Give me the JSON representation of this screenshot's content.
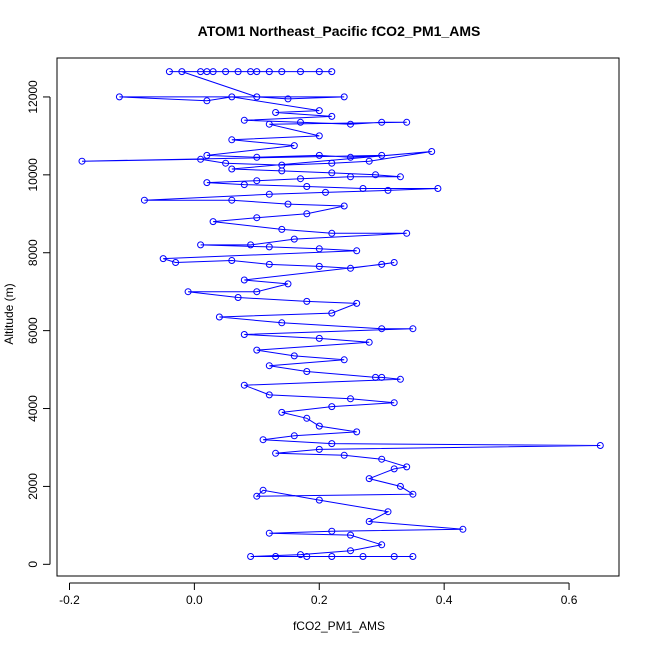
{
  "chart_data": {
    "type": "line",
    "title": "ATOM1 Northeast_Pacific fCO2_PM1_AMS",
    "xlabel": "fCO2_PM1_AMS",
    "ylabel": "Altitude (m)",
    "xlim": [
      -0.22,
      0.68
    ],
    "ylim": [
      -300,
      13000
    ],
    "xticks": [
      -0.2,
      0.0,
      0.2,
      0.4,
      0.6
    ],
    "xtick_labels": [
      "-0.2",
      "0.0",
      "0.2",
      "0.4",
      "0.6"
    ],
    "yticks": [
      0,
      2000,
      4000,
      6000,
      8000,
      10000,
      12000
    ],
    "ytick_labels": [
      "0",
      "2000",
      "4000",
      "6000",
      "8000",
      "10000",
      "12000"
    ],
    "grid": false,
    "marker": "open-circle",
    "color": "#0000ff",
    "series": [
      {
        "values_xy": [
          [
            -0.04,
            12650
          ],
          [
            0.01,
            12650
          ],
          [
            0.03,
            12650
          ],
          [
            0.07,
            12650
          ],
          [
            0.1,
            12650
          ],
          [
            0.14,
            12650
          ],
          [
            0.17,
            12650
          ],
          [
            0.2,
            12650
          ],
          [
            0.22,
            12650
          ],
          [
            0.12,
            12650
          ],
          [
            0.09,
            12650
          ],
          [
            0.05,
            12650
          ],
          [
            0.02,
            12650
          ],
          [
            -0.02,
            12650
          ],
          [
            0.1,
            12000
          ],
          [
            0.15,
            11950
          ],
          [
            0.24,
            12000
          ],
          [
            -0.12,
            12000
          ],
          [
            0.02,
            11900
          ],
          [
            0.06,
            12000
          ],
          [
            0.2,
            11650
          ],
          [
            0.13,
            11600
          ],
          [
            0.22,
            11500
          ],
          [
            0.08,
            11400
          ],
          [
            0.17,
            11350
          ],
          [
            0.25,
            11300
          ],
          [
            0.3,
            11350
          ],
          [
            0.34,
            11350
          ],
          [
            0.12,
            11300
          ],
          [
            0.2,
            11000
          ],
          [
            0.06,
            10900
          ],
          [
            0.16,
            10750
          ],
          [
            0.02,
            10500
          ],
          [
            0.1,
            10450
          ],
          [
            0.2,
            10500
          ],
          [
            0.25,
            10450
          ],
          [
            0.3,
            10500
          ],
          [
            -0.18,
            10350
          ],
          [
            0.01,
            10400
          ],
          [
            0.05,
            10300
          ],
          [
            0.14,
            10250
          ],
          [
            0.22,
            10300
          ],
          [
            0.28,
            10350
          ],
          [
            0.38,
            10600
          ],
          [
            0.06,
            10150
          ],
          [
            0.14,
            10100
          ],
          [
            0.22,
            10050
          ],
          [
            0.29,
            10000
          ],
          [
            0.33,
            9950
          ],
          [
            0.25,
            9950
          ],
          [
            0.17,
            9900
          ],
          [
            0.1,
            9850
          ],
          [
            0.02,
            9800
          ],
          [
            0.08,
            9750
          ],
          [
            0.18,
            9700
          ],
          [
            0.27,
            9650
          ],
          [
            0.39,
            9650
          ],
          [
            0.31,
            9600
          ],
          [
            0.21,
            9550
          ],
          [
            0.12,
            9500
          ],
          [
            -0.08,
            9350
          ],
          [
            0.06,
            9350
          ],
          [
            0.15,
            9250
          ],
          [
            0.24,
            9200
          ],
          [
            0.18,
            9000
          ],
          [
            0.1,
            8900
          ],
          [
            0.03,
            8800
          ],
          [
            0.14,
            8600
          ],
          [
            0.22,
            8500
          ],
          [
            0.34,
            8500
          ],
          [
            0.16,
            8350
          ],
          [
            0.09,
            8200
          ],
          [
            0.01,
            8200
          ],
          [
            0.12,
            8150
          ],
          [
            0.2,
            8100
          ],
          [
            0.26,
            8050
          ],
          [
            -0.05,
            7850
          ],
          [
            -0.03,
            7750
          ],
          [
            0.06,
            7800
          ],
          [
            0.12,
            7700
          ],
          [
            0.2,
            7650
          ],
          [
            0.25,
            7600
          ],
          [
            0.32,
            7750
          ],
          [
            0.3,
            7700
          ],
          [
            0.08,
            7300
          ],
          [
            0.15,
            7200
          ],
          [
            0.1,
            7000
          ],
          [
            -0.01,
            7000
          ],
          [
            0.07,
            6850
          ],
          [
            0.18,
            6750
          ],
          [
            0.26,
            6700
          ],
          [
            0.22,
            6450
          ],
          [
            0.04,
            6350
          ],
          [
            0.14,
            6200
          ],
          [
            0.3,
            6050
          ],
          [
            0.35,
            6050
          ],
          [
            0.08,
            5900
          ],
          [
            0.2,
            5800
          ],
          [
            0.28,
            5700
          ],
          [
            0.1,
            5500
          ],
          [
            0.16,
            5350
          ],
          [
            0.24,
            5250
          ],
          [
            0.12,
            5100
          ],
          [
            0.18,
            4950
          ],
          [
            0.29,
            4800
          ],
          [
            0.3,
            4800
          ],
          [
            0.33,
            4750
          ],
          [
            0.08,
            4600
          ],
          [
            0.12,
            4350
          ],
          [
            0.25,
            4250
          ],
          [
            0.32,
            4150
          ],
          [
            0.22,
            4050
          ],
          [
            0.14,
            3900
          ],
          [
            0.18,
            3750
          ],
          [
            0.2,
            3550
          ],
          [
            0.26,
            3400
          ],
          [
            0.16,
            3300
          ],
          [
            0.11,
            3200
          ],
          [
            0.22,
            3100
          ],
          [
            0.65,
            3050
          ],
          [
            0.2,
            2950
          ],
          [
            0.13,
            2850
          ],
          [
            0.24,
            2800
          ],
          [
            0.3,
            2700
          ],
          [
            0.34,
            2500
          ],
          [
            0.32,
            2450
          ],
          [
            0.28,
            2200
          ],
          [
            0.33,
            2000
          ],
          [
            0.35,
            1800
          ],
          [
            0.1,
            1750
          ],
          [
            0.11,
            1900
          ],
          [
            0.2,
            1650
          ],
          [
            0.31,
            1350
          ],
          [
            0.28,
            1100
          ],
          [
            0.43,
            900
          ],
          [
            0.22,
            850
          ],
          [
            0.12,
            800
          ],
          [
            0.25,
            750
          ],
          [
            0.3,
            500
          ],
          [
            0.25,
            350
          ],
          [
            0.17,
            250
          ],
          [
            0.09,
            200
          ],
          [
            0.13,
            200
          ],
          [
            0.18,
            200
          ],
          [
            0.22,
            200
          ],
          [
            0.27,
            200
          ],
          [
            0.32,
            200
          ],
          [
            0.35,
            200
          ]
        ]
      }
    ]
  }
}
